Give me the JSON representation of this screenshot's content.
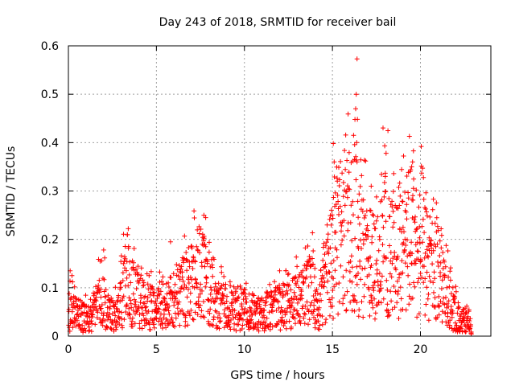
{
  "chart_data": {
    "type": "scatter",
    "title": "Day 243 of 2018, SRMTID for receiver bail",
    "xlabel": "GPS time / hours",
    "ylabel": "SRMTID / TECUs",
    "xlim": [
      0,
      24
    ],
    "ylim": [
      0,
      0.6
    ],
    "xticks": [
      "0",
      "5",
      "10",
      "15",
      "20"
    ],
    "yticks": [
      "0",
      "0.1",
      "0.2",
      "0.3",
      "0.4",
      "0.5",
      "0.6"
    ],
    "grid": true,
    "marker": "+",
    "series": [
      {
        "name": "SRMTID",
        "color": "#ff0000",
        "profile": [
          [
            0.0,
            0.05
          ],
          [
            0.5,
            0.045
          ],
          [
            1.0,
            0.035
          ],
          [
            1.5,
            0.04
          ],
          [
            1.9,
            0.09
          ],
          [
            2.2,
            0.05
          ],
          [
            2.8,
            0.04
          ],
          [
            3.3,
            0.12
          ],
          [
            3.8,
            0.08
          ],
          [
            4.3,
            0.065
          ],
          [
            5.0,
            0.055
          ],
          [
            5.5,
            0.06
          ],
          [
            6.0,
            0.075
          ],
          [
            6.5,
            0.09
          ],
          [
            7.0,
            0.11
          ],
          [
            7.5,
            0.13
          ],
          [
            8.0,
            0.11
          ],
          [
            8.3,
            0.07
          ],
          [
            9.0,
            0.055
          ],
          [
            10.0,
            0.05
          ],
          [
            11.0,
            0.045
          ],
          [
            12.0,
            0.06
          ],
          [
            13.0,
            0.07
          ],
          [
            13.8,
            0.095
          ],
          [
            14.3,
            0.06
          ],
          [
            14.8,
            0.13
          ],
          [
            15.3,
            0.2
          ],
          [
            15.8,
            0.22
          ],
          [
            16.3,
            0.21
          ],
          [
            16.8,
            0.16
          ],
          [
            17.5,
            0.15
          ],
          [
            18.0,
            0.19
          ],
          [
            18.5,
            0.15
          ],
          [
            19.0,
            0.17
          ],
          [
            19.5,
            0.2
          ],
          [
            20.0,
            0.17
          ],
          [
            20.5,
            0.14
          ],
          [
            21.0,
            0.12
          ],
          [
            21.5,
            0.08
          ],
          [
            22.0,
            0.045
          ],
          [
            22.5,
            0.03
          ],
          [
            22.9,
            0.02
          ]
        ],
        "peaks": [
          [
            16.4,
            0.573
          ],
          [
            16.35,
            0.5
          ],
          [
            16.32,
            0.47
          ],
          [
            16.28,
            0.448
          ],
          [
            16.2,
            0.415
          ],
          [
            15.05,
            0.398
          ],
          [
            16.38,
            0.4
          ],
          [
            19.6,
            0.383
          ],
          [
            18.05,
            0.378
          ],
          [
            16.25,
            0.365
          ],
          [
            19.55,
            0.36
          ],
          [
            16.4,
            0.36
          ],
          [
            15.1,
            0.36
          ],
          [
            18.0,
            0.33
          ],
          [
            19.5,
            0.35
          ],
          [
            3.4,
            0.222
          ],
          [
            7.7,
            0.25
          ],
          [
            7.8,
            0.245
          ],
          [
            5.8,
            0.195
          ],
          [
            1.8,
            0.155
          ],
          [
            12.0,
            0.135
          ],
          [
            13.9,
            0.148
          ],
          [
            14.0,
            0.14
          ],
          [
            17.2,
            0.31
          ],
          [
            18.8,
            0.27
          ],
          [
            19.0,
            0.278
          ],
          [
            0.1,
            0.135
          ],
          [
            0.2,
            0.125
          ]
        ]
      }
    ]
  }
}
